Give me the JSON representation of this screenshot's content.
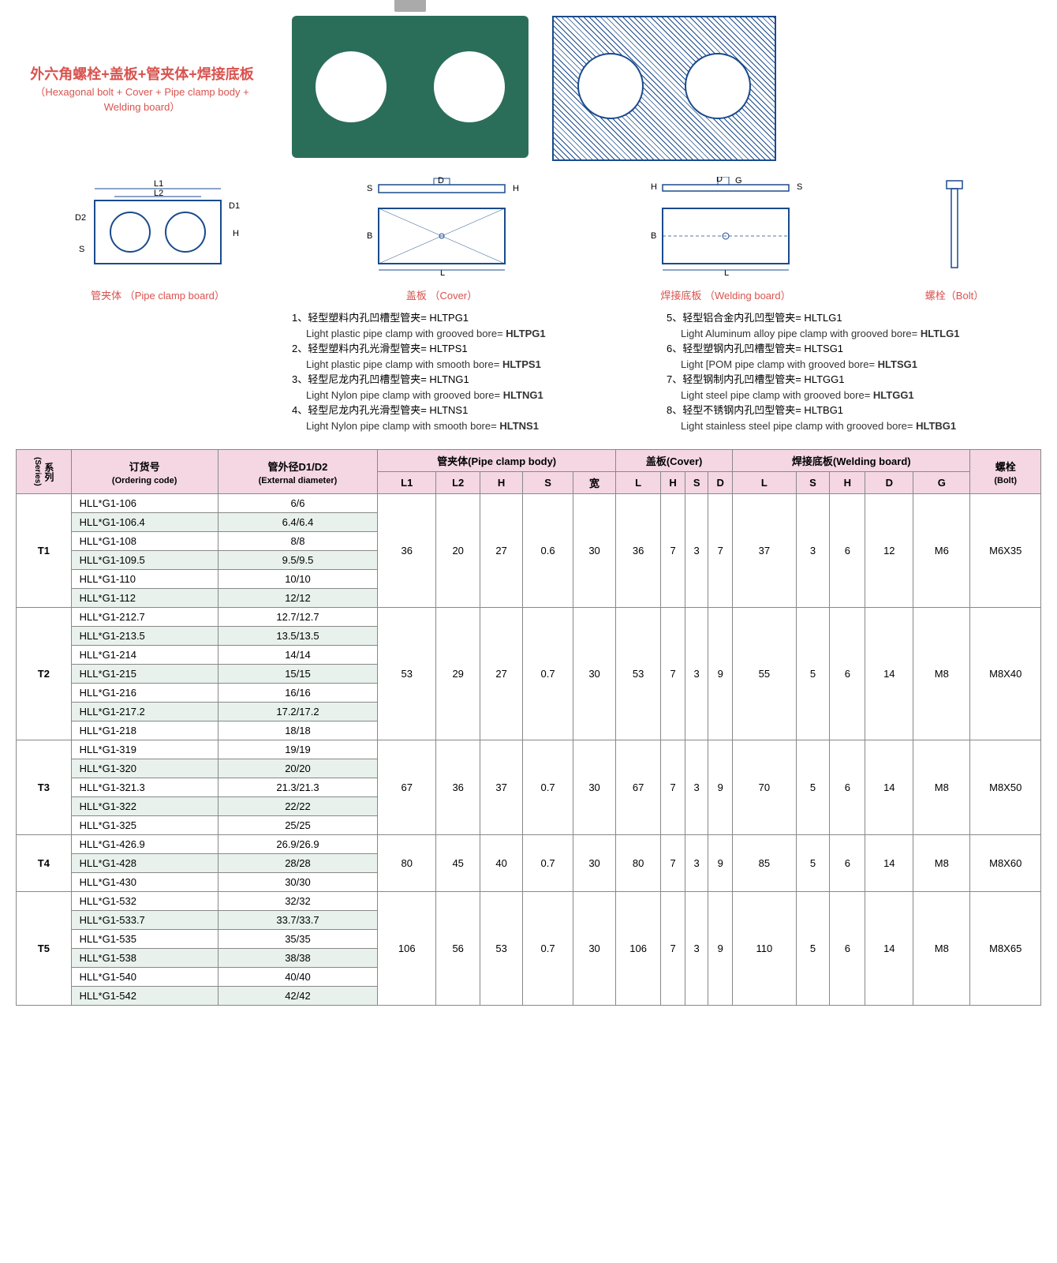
{
  "title": {
    "zh": "外六角螺栓+盖板+管夹体+焊接底板",
    "en": "（Hexagonal bolt + Cover + Pipe clamp body + Welding board）"
  },
  "diagram_labels": {
    "pipe_clamp": "管夹体 （Pipe clamp board）",
    "cover": "盖板 （Cover）",
    "welding": "焊接底板 （Welding board）",
    "bolt": "螺栓（Bolt）",
    "L1": "L1",
    "L2": "L2",
    "D1": "D1",
    "D2": "D2",
    "H": "H",
    "S": "S",
    "D": "D",
    "B": "B",
    "L": "L",
    "G": "G"
  },
  "notes_left": [
    {
      "n": "1、",
      "zh": "轻型塑料内孔凹槽型管夹= HLTPG1",
      "en": "Light plastic pipe clamp with grooved bore=",
      "code": "HLTPG1"
    },
    {
      "n": "2、",
      "zh": "轻型塑料内孔光滑型管夹= HLTPS1",
      "en": "Light plastic pipe clamp with smooth bore=",
      "code": "HLTPS1"
    },
    {
      "n": "3、",
      "zh": "轻型尼龙内孔凹槽型管夹= HLTNG1",
      "en": "Light Nylon pipe clamp with grooved bore=",
      "code": "HLTNG1"
    },
    {
      "n": "4、",
      "zh": "轻型尼龙内孔光滑型管夹= HLTNS1",
      "en": "Light Nylon pipe clamp with smooth bore=",
      "code": "HLTNS1"
    }
  ],
  "notes_right": [
    {
      "n": "5、",
      "zh": "轻型铝合金内孔凹型管夹= HLTLG1",
      "en": "Light Aluminum alloy pipe clamp with grooved bore=",
      "code": "HLTLG1"
    },
    {
      "n": "6、",
      "zh": "轻型塑钢内孔凹槽型管夹= HLTSG1",
      "en": "Light [POM pipe clamp with grooved bore=",
      "code": "HLTSG1"
    },
    {
      "n": "7、",
      "zh": "轻型钢制内孔凹槽型管夹= HLTGG1",
      "en": "Light steel pipe clamp with grooved bore=",
      "code": "HLTGG1"
    },
    {
      "n": "8、",
      "zh": "轻型不锈钢内孔凹型管夹= HLTBG1",
      "en": "Light stainless steel pipe clamp with grooved bore=",
      "code": "HLTBG1"
    }
  ],
  "table": {
    "header_row1": {
      "series": "系列",
      "series_en": "(Series)",
      "ordering": "订货号",
      "ordering_en": "(Ordering code)",
      "diameter": "管外径D1/D2",
      "diameter_en": "(External diameter)",
      "body": "管夹体(Pipe clamp body)",
      "cover": "盖板(Cover)",
      "welding": "焊接底板(Welding board)",
      "bolt": "螺栓",
      "bolt_en": "(Bolt)"
    },
    "header_row2": {
      "body": [
        "L1",
        "L2",
        "H",
        "S",
        "宽"
      ],
      "cover": [
        "L",
        "H",
        "S",
        "D"
      ],
      "welding": [
        "L",
        "S",
        "H",
        "D",
        "G"
      ]
    },
    "groups": [
      {
        "series": "T1",
        "rows": [
          {
            "code": "HLL*G1-106",
            "dia": "6/6"
          },
          {
            "code": "HLL*G1-106.4",
            "dia": "6.4/6.4"
          },
          {
            "code": "HLL*G1-108",
            "dia": "8/8"
          },
          {
            "code": "HLL*G1-109.5",
            "dia": "9.5/9.5"
          },
          {
            "code": "HLL*G1-110",
            "dia": "10/10"
          },
          {
            "code": "HLL*G1-112",
            "dia": "12/12"
          }
        ],
        "body": [
          "36",
          "20",
          "27",
          "0.6",
          "30"
        ],
        "cover": [
          "36",
          "7",
          "3",
          "7"
        ],
        "welding": [
          "37",
          "3",
          "6",
          "12",
          "M6"
        ],
        "bolt": "M6X35"
      },
      {
        "series": "T2",
        "rows": [
          {
            "code": "HLL*G1-212.7",
            "dia": "12.7/12.7"
          },
          {
            "code": "HLL*G1-213.5",
            "dia": "13.5/13.5"
          },
          {
            "code": "HLL*G1-214",
            "dia": "14/14"
          },
          {
            "code": "HLL*G1-215",
            "dia": "15/15"
          },
          {
            "code": "HLL*G1-216",
            "dia": "16/16"
          },
          {
            "code": "HLL*G1-217.2",
            "dia": "17.2/17.2"
          },
          {
            "code": "HLL*G1-218",
            "dia": "18/18"
          }
        ],
        "body": [
          "53",
          "29",
          "27",
          "0.7",
          "30"
        ],
        "cover": [
          "53",
          "7",
          "3",
          "9"
        ],
        "welding": [
          "55",
          "5",
          "6",
          "14",
          "M8"
        ],
        "bolt": "M8X40"
      },
      {
        "series": "T3",
        "rows": [
          {
            "code": "HLL*G1-319",
            "dia": "19/19"
          },
          {
            "code": "HLL*G1-320",
            "dia": "20/20"
          },
          {
            "code": "HLL*G1-321.3",
            "dia": "21.3/21.3"
          },
          {
            "code": "HLL*G1-322",
            "dia": "22/22"
          },
          {
            "code": "HLL*G1-325",
            "dia": "25/25"
          }
        ],
        "body": [
          "67",
          "36",
          "37",
          "0.7",
          "30"
        ],
        "cover": [
          "67",
          "7",
          "3",
          "9"
        ],
        "welding": [
          "70",
          "5",
          "6",
          "14",
          "M8"
        ],
        "bolt": "M8X50"
      },
      {
        "series": "T4",
        "rows": [
          {
            "code": "HLL*G1-426.9",
            "dia": "26.9/26.9"
          },
          {
            "code": "HLL*G1-428",
            "dia": "28/28"
          },
          {
            "code": "HLL*G1-430",
            "dia": "30/30"
          }
        ],
        "body": [
          "80",
          "45",
          "40",
          "0.7",
          "30"
        ],
        "cover": [
          "80",
          "7",
          "3",
          "9"
        ],
        "welding": [
          "85",
          "5",
          "6",
          "14",
          "M8"
        ],
        "bolt": "M8X60"
      },
      {
        "series": "T5",
        "rows": [
          {
            "code": "HLL*G1-532",
            "dia": "32/32"
          },
          {
            "code": "HLL*G1-533.7",
            "dia": "33.7/33.7"
          },
          {
            "code": "HLL*G1-535",
            "dia": "35/35"
          },
          {
            "code": "HLL*G1-538",
            "dia": "38/38"
          },
          {
            "code": "HLL*G1-540",
            "dia": "40/40"
          },
          {
            "code": "HLL*G1-542",
            "dia": "42/42"
          }
        ],
        "body": [
          "106",
          "56",
          "53",
          "0.7",
          "30"
        ],
        "cover": [
          "106",
          "7",
          "3",
          "9"
        ],
        "welding": [
          "110",
          "5",
          "6",
          "14",
          "M8"
        ],
        "bolt": "M8X65"
      }
    ]
  },
  "colors": {
    "header_bg": "#f4d7e3",
    "row_alt_bg": "#e8f1ec",
    "border": "#888888",
    "label_red": "#d9534f",
    "diagram_blue": "#1a4b8c",
    "clamp_green": "#2a6e5a"
  }
}
